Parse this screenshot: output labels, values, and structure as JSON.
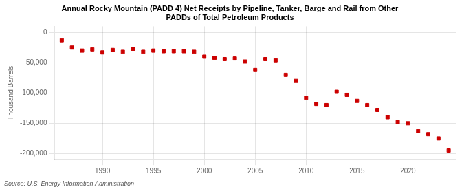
{
  "chart_data": {
    "type": "scatter",
    "title": "Annual Rocky Mountain (PADD 4) Net Receipts by Pipeline, Tanker, Barge and Rail from Other\nPADDs of Total Petroleum Products",
    "ylabel": "Thousand Barrels",
    "annotations": [
      "Source: U.S. Energy Information Administration"
    ],
    "x": [
      1986,
      1987,
      1988,
      1989,
      1990,
      1991,
      1992,
      1993,
      1994,
      1995,
      1996,
      1997,
      1998,
      1999,
      2000,
      2001,
      2002,
      2003,
      2004,
      2005,
      2006,
      2007,
      2008,
      2009,
      2010,
      2011,
      2012,
      2013,
      2014,
      2015,
      2016,
      2017,
      2018,
      2019,
      2020,
      2021,
      2022,
      2023,
      2024
    ],
    "values": [
      -13000,
      -25000,
      -30000,
      -28000,
      -33000,
      -29000,
      -32000,
      -27000,
      -32000,
      -30000,
      -31000,
      -31000,
      -31000,
      -32000,
      -40000,
      -42000,
      -44000,
      -43000,
      -48000,
      -62000,
      -44000,
      -46000,
      -70000,
      -80000,
      -108000,
      -118000,
      -120000,
      -98000,
      -103000,
      -113000,
      -120000,
      -128000,
      -140000,
      -148000,
      -150000,
      -163000,
      -168000,
      -175000,
      -195000
    ],
    "color": "#cc0000",
    "marker": "square",
    "xlim": [
      1985.3,
      2024.7
    ],
    "xticks": [
      1990,
      1995,
      2000,
      2005,
      2010,
      2015,
      2020
    ],
    "ylim": [
      -210000,
      10000
    ],
    "yticks": [
      0,
      {
        "value": -50000,
        "label": "-50,000"
      },
      {
        "value": -100000,
        "label": "-100,000"
      },
      {
        "value": -150000,
        "label": "-150,000"
      },
      {
        "value": -200000,
        "label": "-200,000"
      }
    ],
    "grid": true
  }
}
